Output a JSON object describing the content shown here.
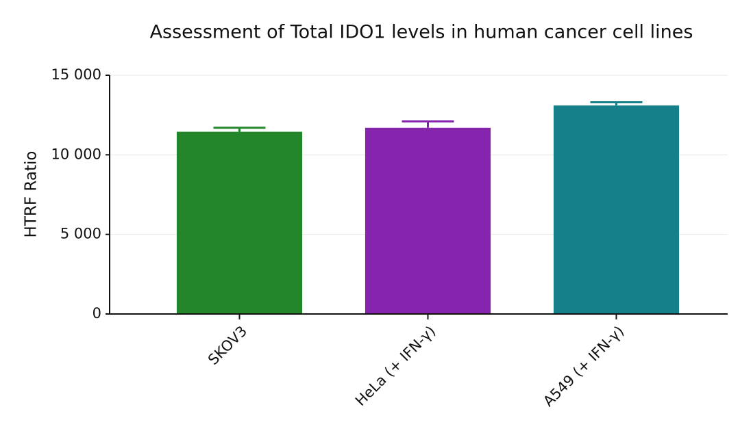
{
  "chart_data": {
    "type": "bar",
    "title": "Assessment of Total IDO1 levels in human cancer cell lines",
    "y_label": "HTRF Ratio",
    "categories": [
      "SKOV3",
      "HeLa (+ IFN-γ)",
      "A549 (+ IFN-γ)"
    ],
    "values": [
      11450,
      11700,
      13100
    ],
    "errors": [
      250,
      400,
      200
    ],
    "colors": [
      "#23862b",
      "#8525ae",
      "#16808a"
    ],
    "ylim": [
      0,
      15000
    ],
    "yticks": [
      0,
      {
        "value": 5000,
        "label": "5 000"
      },
      {
        "value": 10000,
        "label": "10 000"
      },
      {
        "value": 15000,
        "label": "15 000"
      }
    ],
    "grid": true
  }
}
